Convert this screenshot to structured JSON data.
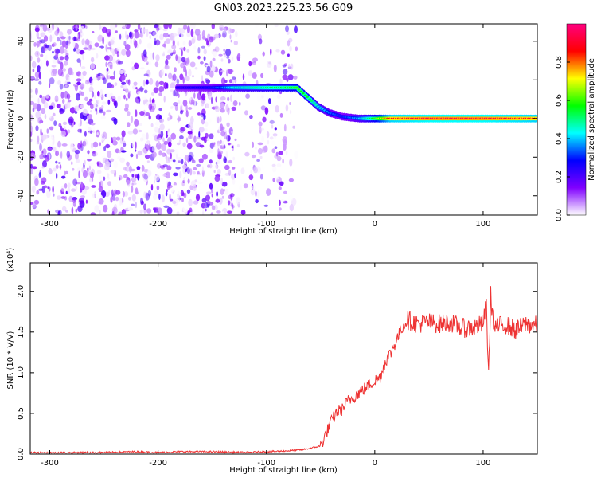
{
  "figure_title": "GN03.2023.225.23.56.G09",
  "chart_data": [
    {
      "type": "heatmap",
      "panel": "spectrogram",
      "xlabel": "Height of straight line (km)",
      "ylabel": "Frequency (Hz)",
      "xlim": [
        -318,
        150
      ],
      "ylim": [
        -50,
        49
      ],
      "x_ticks": [
        -300,
        -200,
        -100,
        0,
        100
      ],
      "y_ticks": [
        -40,
        -20,
        0,
        20,
        40
      ],
      "colorbar": {
        "label": "Normalized spectral amplitude",
        "range": [
          0.0,
          1.0
        ],
        "ticks": [
          0.0,
          0.2,
          0.4,
          0.6,
          0.8
        ],
        "colormap": [
          "#ffffff",
          "#8000ff",
          "#0000ff",
          "#00ffff",
          "#00ff00",
          "#ffff00",
          "#ff0000",
          "#ff0080"
        ]
      },
      "noise_region_km": [
        -318,
        -72
      ],
      "ridge": {
        "x": [
          -182,
          -150,
          -130,
          -110,
          -90,
          -72,
          -62,
          -52,
          -42,
          -30,
          -15,
          0,
          15,
          50,
          100,
          150
        ],
        "y": [
          16,
          16,
          16,
          16,
          16,
          16,
          11,
          6,
          3,
          1,
          0,
          0,
          0,
          0,
          0,
          0
        ],
        "amplitude": [
          0.25,
          0.3,
          0.45,
          0.5,
          0.55,
          0.6,
          0.55,
          0.45,
          0.35,
          0.3,
          0.4,
          0.6,
          0.9,
          0.95,
          0.95,
          0.9
        ]
      },
      "grid": false
    },
    {
      "type": "line",
      "panel": "snr",
      "xlabel": "Height of straight line (km)",
      "ylabel": "SNR (10 * V/V)",
      "y_multiplier": "(x10⁴)",
      "xlim": [
        -318,
        150
      ],
      "ylim": [
        0,
        2.35
      ],
      "x_ticks": [
        -300,
        -200,
        -100,
        0,
        100
      ],
      "y_ticks": [
        0.0,
        0.5,
        1.0,
        1.5,
        2.0
      ],
      "y_tick_labels": [
        "0.0",
        "0.5",
        "1.0",
        "1.5",
        "2.0"
      ],
      "color": "#ee3333",
      "series": [
        {
          "x": [
            -318,
            -280,
            -250,
            -220,
            -200,
            -180,
            -150,
            -120,
            -100,
            -80,
            -70,
            -60,
            -50,
            -45,
            -40,
            -35,
            -30,
            -25,
            -20,
            -15,
            -10,
            -5,
            0,
            5,
            10,
            15,
            20,
            25,
            30,
            35,
            40,
            50,
            60,
            70,
            80,
            90,
            100,
            103,
            105,
            107,
            110,
            120,
            130,
            140,
            150
          ],
          "y": [
            0.02,
            0.02,
            0.02,
            0.03,
            0.02,
            0.03,
            0.03,
            0.02,
            0.03,
            0.04,
            0.05,
            0.07,
            0.1,
            0.25,
            0.4,
            0.52,
            0.55,
            0.65,
            0.7,
            0.75,
            0.8,
            0.85,
            0.9,
            0.95,
            1.15,
            1.25,
            1.4,
            1.55,
            1.65,
            1.62,
            1.6,
            1.62,
            1.6,
            1.62,
            1.55,
            1.55,
            1.6,
            1.85,
            0.95,
            1.95,
            1.55,
            1.6,
            1.52,
            1.6,
            1.58
          ]
        }
      ],
      "grid": false
    }
  ]
}
